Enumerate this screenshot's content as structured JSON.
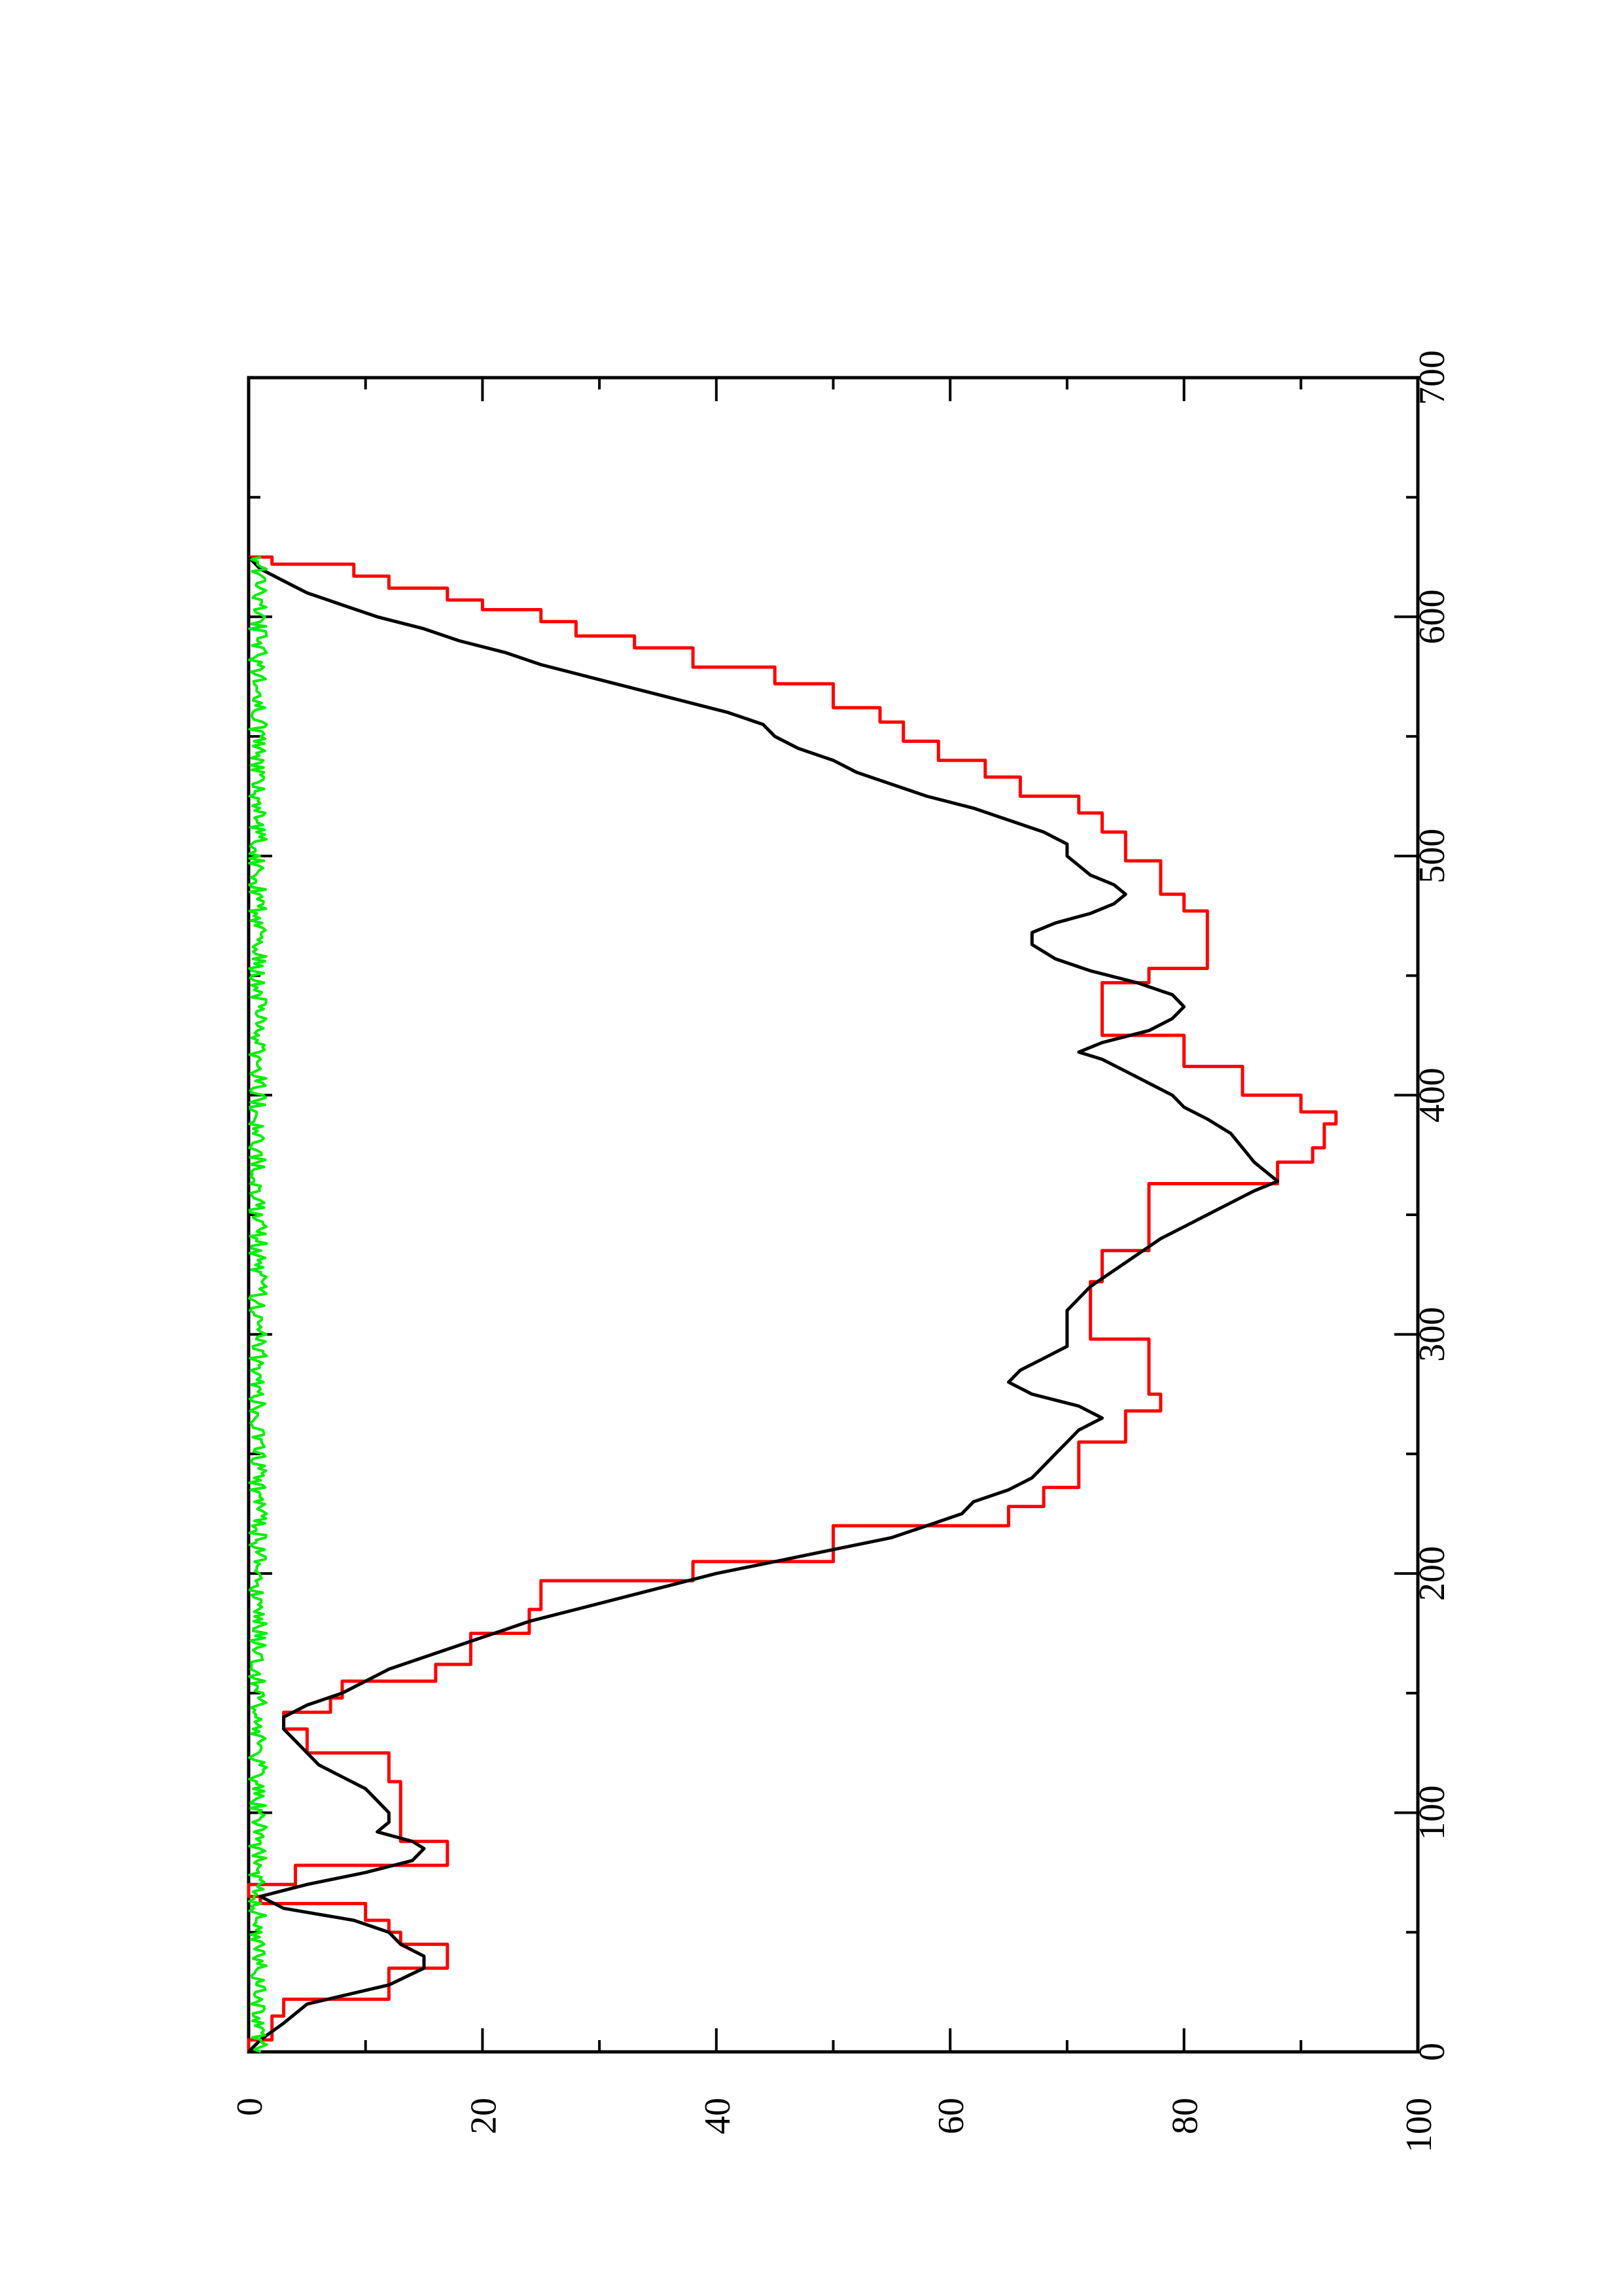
{
  "chart_data": {
    "type": "line",
    "title": "",
    "xlabel": "",
    "ylabel": "",
    "orientation": "rotated-90-ccw",
    "xlim": [
      0,
      700
    ],
    "ylim": [
      0,
      100
    ],
    "x_ticks": [
      0,
      100,
      200,
      300,
      400,
      500,
      600,
      700
    ],
    "x_minor_ticks": [
      50,
      150,
      250,
      350,
      450,
      550,
      650
    ],
    "y_ticks": [
      0,
      20,
      40,
      60,
      80,
      100
    ],
    "y_minor_ticks": [
      10,
      30,
      50,
      70,
      90
    ],
    "x_tick_labels": [
      "0",
      "100",
      "200",
      "300",
      "400",
      "500",
      "600",
      "700"
    ],
    "y_tick_labels": [
      "0",
      "20",
      "40",
      "60",
      "80",
      "100"
    ],
    "grid": false,
    "legend": "none",
    "series": [
      {
        "color": "#ff0000",
        "style": "step",
        "points": [
          [
            0,
            0
          ],
          [
            5,
            2
          ],
          [
            15,
            3
          ],
          [
            22,
            12
          ],
          [
            35,
            17
          ],
          [
            40,
            17
          ],
          [
            45,
            13
          ],
          [
            50,
            12
          ],
          [
            55,
            10
          ],
          [
            62,
            1
          ],
          [
            65,
            0
          ],
          [
            70,
            4
          ],
          [
            78,
            17
          ],
          [
            85,
            17
          ],
          [
            88,
            13
          ],
          [
            95,
            13
          ],
          [
            110,
            13
          ],
          [
            113,
            12
          ],
          [
            125,
            5
          ],
          [
            135,
            3
          ],
          [
            140,
            3
          ],
          [
            142,
            7
          ],
          [
            148,
            8
          ],
          [
            155,
            16
          ],
          [
            162,
            19
          ],
          [
            167,
            19
          ],
          [
            175,
            24
          ],
          [
            185,
            25
          ],
          [
            197,
            38
          ],
          [
            205,
            50
          ],
          [
            220,
            65
          ],
          [
            228,
            68
          ],
          [
            236,
            71
          ],
          [
            245,
            71
          ],
          [
            255,
            75
          ],
          [
            263,
            75
          ],
          [
            268,
            78
          ],
          [
            275,
            77
          ],
          [
            282,
            77
          ],
          [
            290,
            77
          ],
          [
            298,
            72
          ],
          [
            310,
            72
          ],
          [
            322,
            73
          ],
          [
            335,
            77
          ],
          [
            348,
            77
          ],
          [
            355,
            77
          ],
          [
            363,
            88
          ],
          [
            372,
            91
          ],
          [
            378,
            92
          ],
          [
            382,
            92
          ],
          [
            388,
            93
          ],
          [
            393,
            90
          ],
          [
            400,
            85
          ],
          [
            405,
            85
          ],
          [
            412,
            80
          ],
          [
            418,
            80
          ],
          [
            425,
            73
          ],
          [
            432,
            73
          ],
          [
            438,
            73
          ],
          [
            443,
            73
          ],
          [
            447,
            77
          ],
          [
            453,
            82
          ],
          [
            458,
            82
          ],
          [
            462,
            82
          ],
          [
            467,
            82
          ],
          [
            473,
            82
          ],
          [
            477,
            80
          ],
          [
            484,
            78
          ],
          [
            490,
            78
          ],
          [
            494,
            78
          ],
          [
            498,
            75
          ],
          [
            505,
            75
          ],
          [
            510,
            73
          ],
          [
            518,
            71
          ],
          [
            525,
            66
          ],
          [
            533,
            63
          ],
          [
            540,
            59
          ],
          [
            548,
            56
          ],
          [
            556,
            54
          ],
          [
            562,
            50
          ],
          [
            568,
            50
          ],
          [
            572,
            45
          ],
          [
            579,
            38
          ],
          [
            587,
            33
          ],
          [
            592,
            28
          ],
          [
            598,
            25
          ],
          [
            603,
            20
          ],
          [
            607,
            17
          ],
          [
            612,
            12
          ],
          [
            617,
            9
          ],
          [
            622,
            2
          ],
          [
            625,
            0
          ]
        ]
      },
      {
        "color": "#000000",
        "style": "line",
        "points": [
          [
            0,
            0
          ],
          [
            5,
            1
          ],
          [
            12,
            3
          ],
          [
            20,
            5
          ],
          [
            28,
            12
          ],
          [
            35,
            15
          ],
          [
            40,
            15
          ],
          [
            45,
            13
          ],
          [
            50,
            12
          ],
          [
            55,
            9
          ],
          [
            60,
            3
          ],
          [
            65,
            1
          ],
          [
            70,
            5
          ],
          [
            75,
            10
          ],
          [
            80,
            14
          ],
          [
            85,
            15
          ],
          [
            88,
            14
          ],
          [
            92,
            11
          ],
          [
            96,
            12
          ],
          [
            100,
            12
          ],
          [
            105,
            11
          ],
          [
            110,
            10
          ],
          [
            115,
            8
          ],
          [
            120,
            6
          ],
          [
            125,
            5
          ],
          [
            130,
            4
          ],
          [
            135,
            3
          ],
          [
            140,
            3
          ],
          [
            145,
            5
          ],
          [
            150,
            8
          ],
          [
            155,
            10
          ],
          [
            160,
            12
          ],
          [
            165,
            15
          ],
          [
            170,
            18
          ],
          [
            175,
            21
          ],
          [
            180,
            24
          ],
          [
            185,
            28
          ],
          [
            190,
            32
          ],
          [
            195,
            36
          ],
          [
            200,
            40
          ],
          [
            205,
            45
          ],
          [
            210,
            50
          ],
          [
            215,
            55
          ],
          [
            220,
            58
          ],
          [
            225,
            61
          ],
          [
            230,
            62
          ],
          [
            235,
            65
          ],
          [
            240,
            67
          ],
          [
            245,
            68
          ],
          [
            250,
            69
          ],
          [
            255,
            70
          ],
          [
            260,
            71
          ],
          [
            265,
            73
          ],
          [
            270,
            71
          ],
          [
            275,
            67
          ],
          [
            280,
            65
          ],
          [
            285,
            66
          ],
          [
            290,
            68
          ],
          [
            295,
            70
          ],
          [
            300,
            70
          ],
          [
            310,
            70
          ],
          [
            320,
            72
          ],
          [
            330,
            75
          ],
          [
            340,
            78
          ],
          [
            345,
            80
          ],
          [
            350,
            82
          ],
          [
            355,
            84
          ],
          [
            360,
            86
          ],
          [
            364,
            88
          ],
          [
            368,
            87
          ],
          [
            372,
            86
          ],
          [
            378,
            85
          ],
          [
            384,
            84
          ],
          [
            390,
            82
          ],
          [
            395,
            80
          ],
          [
            400,
            79
          ],
          [
            405,
            77
          ],
          [
            410,
            75
          ],
          [
            415,
            73
          ],
          [
            418,
            71
          ],
          [
            422,
            73
          ],
          [
            427,
            77
          ],
          [
            432,
            79
          ],
          [
            437,
            80
          ],
          [
            442,
            79
          ],
          [
            447,
            76
          ],
          [
            452,
            72
          ],
          [
            457,
            69
          ],
          [
            463,
            67
          ],
          [
            468,
            67
          ],
          [
            472,
            69
          ],
          [
            476,
            72
          ],
          [
            480,
            74
          ],
          [
            484,
            75
          ],
          [
            488,
            74
          ],
          [
            492,
            72
          ],
          [
            496,
            71
          ],
          [
            500,
            70
          ],
          [
            505,
            70
          ],
          [
            510,
            68
          ],
          [
            515,
            65
          ],
          [
            520,
            62
          ],
          [
            525,
            58
          ],
          [
            530,
            55
          ],
          [
            535,
            52
          ],
          [
            540,
            50
          ],
          [
            545,
            47
          ],
          [
            550,
            45
          ],
          [
            555,
            44
          ],
          [
            560,
            41
          ],
          [
            565,
            37
          ],
          [
            570,
            33
          ],
          [
            575,
            29
          ],
          [
            580,
            25
          ],
          [
            585,
            22
          ],
          [
            590,
            18
          ],
          [
            595,
            15
          ],
          [
            600,
            11
          ],
          [
            605,
            8
          ],
          [
            610,
            5
          ],
          [
            615,
            3
          ],
          [
            620,
            1
          ],
          [
            625,
            0
          ]
        ]
      },
      {
        "color": "#00ee00",
        "style": "noise",
        "baseline": 0.5,
        "amplitude": 1.5,
        "x_range": [
          0,
          625
        ]
      }
    ]
  }
}
